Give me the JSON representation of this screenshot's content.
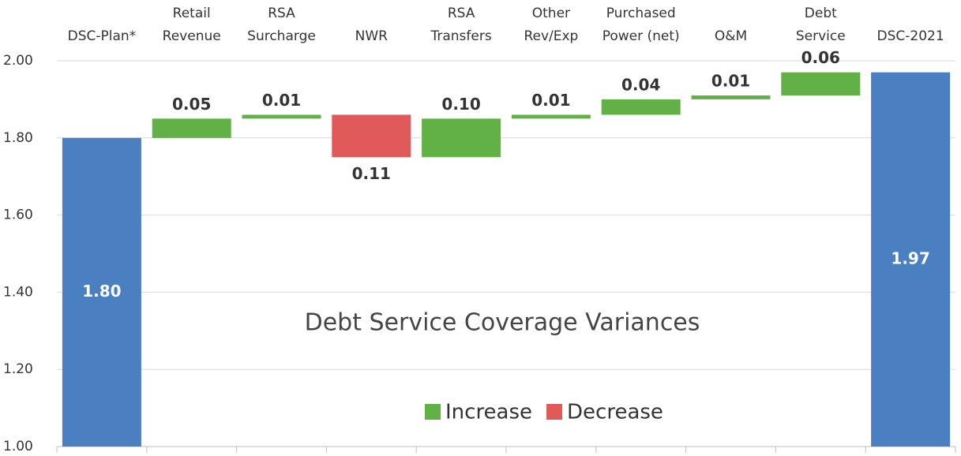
{
  "chart_data": {
    "type": "waterfall",
    "annotation": "Debt Service Coverage Variances",
    "categories": [
      "DSC-Plan*",
      "Retail\nRevenue",
      "RSA\nSurcharge",
      "NWR",
      "RSA\nTransfers",
      "Other\nRev/Exp",
      "Purchased\nPower (net)",
      "O&M",
      "Debt\nService",
      "DSC-2021"
    ],
    "values": [
      1.8,
      0.05,
      0.01,
      -0.11,
      0.1,
      0.01,
      0.04,
      0.01,
      0.06,
      1.97
    ],
    "value_labels": [
      "1.80",
      "0.05",
      "0.01",
      "0.11",
      "0.10",
      "0.01",
      "0.04",
      "0.01",
      "0.06",
      "1.97"
    ],
    "measure": [
      "total",
      "relative",
      "relative",
      "relative",
      "relative",
      "relative",
      "relative",
      "relative",
      "relative",
      "total"
    ],
    "total_color": "#4a7fc1",
    "series": [
      {
        "name": "Increase",
        "color": "#62b146"
      },
      {
        "name": "Decrease",
        "color": "#e05a5a"
      }
    ],
    "ylim": [
      1.0,
      2.0
    ],
    "yticks": [
      {
        "value": 1.0,
        "label": "1.00"
      },
      {
        "value": 1.2,
        "label": "1.20"
      },
      {
        "value": 1.4,
        "label": "1.40"
      },
      {
        "value": 1.6,
        "label": "1.60"
      },
      {
        "value": 1.8,
        "label": "1.80"
      },
      {
        "value": 2.0,
        "label": "2.00"
      }
    ],
    "grid": true
  }
}
